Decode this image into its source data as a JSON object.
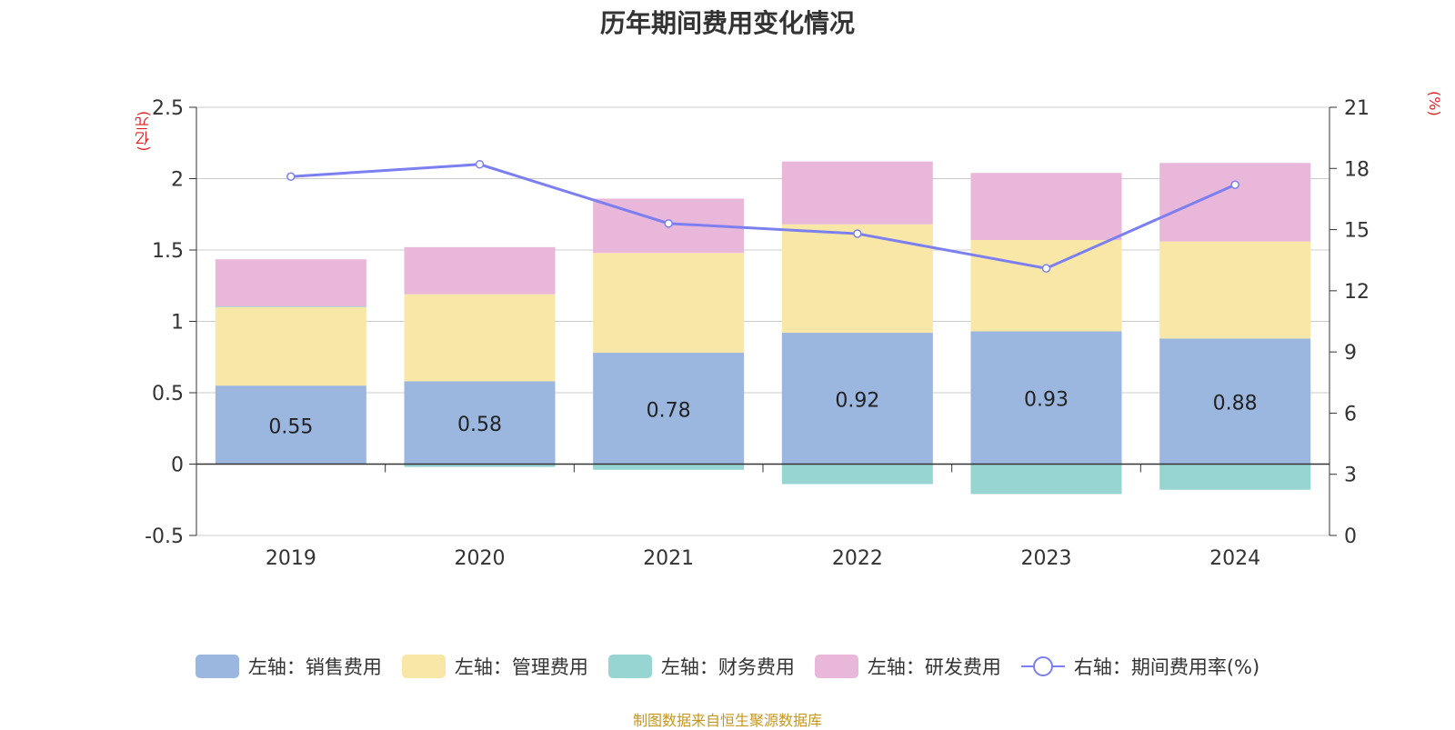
{
  "chart_data": {
    "type": "bar",
    "title": "历年期间费用变化情况",
    "categories": [
      "2019",
      "2020",
      "2021",
      "2022",
      "2023",
      "2024"
    ],
    "left_axis": {
      "unit": "(亿元)",
      "min": -0.5,
      "max": 2.5,
      "ticks": [
        "-0.5",
        "0",
        "0.5",
        "1",
        "1.5",
        "2",
        "2.5"
      ]
    },
    "right_axis": {
      "unit": "(%)",
      "min": 0,
      "max": 21,
      "ticks": [
        "0",
        "3",
        "6",
        "9",
        "12",
        "15",
        "18",
        "21"
      ]
    },
    "series": [
      {
        "name": "左轴：销售费用",
        "type": "bar",
        "axis": "left",
        "color": "#9bb7e0",
        "values": [
          0.55,
          0.58,
          0.78,
          0.92,
          0.93,
          0.88
        ],
        "labels": [
          "0.55",
          "0.58",
          "0.78",
          "0.92",
          "0.93",
          "0.88"
        ]
      },
      {
        "name": "左轴：管理费用",
        "type": "bar",
        "axis": "left",
        "color": "#f8e7a6",
        "values": [
          0.55,
          0.61,
          0.7,
          0.76,
          0.64,
          0.68
        ]
      },
      {
        "name": "左轴：财务费用",
        "type": "bar",
        "axis": "left",
        "color": "#97d5d3",
        "values": [
          0.005,
          -0.02,
          -0.04,
          -0.14,
          -0.21,
          -0.18
        ]
      },
      {
        "name": "左轴：研发费用",
        "type": "bar",
        "axis": "left",
        "color": "#e8b7d9",
        "values": [
          0.33,
          0.33,
          0.38,
          0.44,
          0.47,
          0.55
        ]
      },
      {
        "name": "右轴：期间费用率(%)",
        "type": "line",
        "axis": "right",
        "color": "#7b7ff0",
        "values": [
          17.6,
          18.2,
          15.3,
          14.8,
          13.1,
          17.2
        ]
      }
    ]
  },
  "source_note": "制图数据来自恒生聚源数据库"
}
